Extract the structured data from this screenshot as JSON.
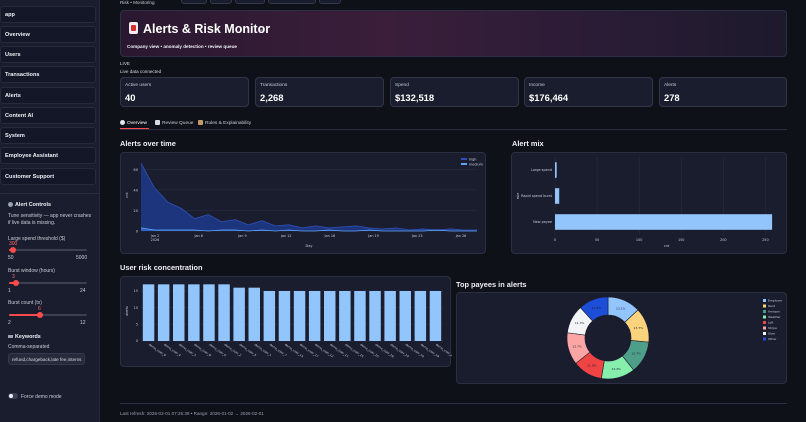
{
  "sidebar": {
    "items": [
      {
        "label": "app"
      },
      {
        "label": "Overview"
      },
      {
        "label": "Users"
      },
      {
        "label": "Transactions"
      },
      {
        "label": "Alerts"
      },
      {
        "label": "Content AI"
      },
      {
        "label": "System"
      },
      {
        "label": "Employee Assistant"
      },
      {
        "label": "Customer Support"
      }
    ],
    "alert_controls": {
      "title": "Alert Controls",
      "help": "Tune sensitivity — app never crashes if live data is missing.",
      "large_spend": {
        "label": "Large spend threshold ($)",
        "value": "300",
        "min": "50",
        "max": "5000",
        "fraction": 0.05
      },
      "burst_window": {
        "label": "Burst window (hours)",
        "value": "3",
        "min": "1",
        "max": "24",
        "fraction": 0.09
      },
      "burst_count": {
        "label": "Burst count (tx)",
        "value": "6",
        "min": "2",
        "max": "12",
        "fraction": 0.4
      }
    },
    "keywords": {
      "title": "Keywords",
      "label": "Comma-separated",
      "value": "refund,chargeback,late fee,interns"
    },
    "force_demo": {
      "label": "Force demo mode",
      "on": false
    }
  },
  "breadcrumb": "Risk • Monitoring",
  "hero": {
    "title": "Alerts & Risk Monitor",
    "link_icon": "link-icon",
    "subtitle": "Company view • anomaly detection • review queue"
  },
  "status": {
    "live": "LIVE",
    "connected": "Live data connected"
  },
  "metrics": [
    {
      "label": "Active users",
      "value": "40"
    },
    {
      "label": "Transactions",
      "value": "2,268"
    },
    {
      "label": "Spend",
      "value": "$132,518"
    },
    {
      "label": "Income",
      "value": "$176,464"
    },
    {
      "label": "Alerts",
      "value": "278"
    }
  ],
  "tabs": [
    {
      "label": "Overview",
      "icon": "overview-icon",
      "active": true
    },
    {
      "label": "Review Queue",
      "icon": "clipboard-icon",
      "active": false
    },
    {
      "label": "Rules & Explainability",
      "icon": "rules-icon",
      "active": false
    }
  ],
  "sections": {
    "alerts_over_time": "Alerts over time",
    "alert_mix": "Alert mix",
    "user_risk": "User risk concentration",
    "top_payees": "Top payees in alerts"
  },
  "chart_data": [
    {
      "type": "area",
      "title": "Alerts over time",
      "xlabel": "Day",
      "ylabel": "cnt",
      "x_ticks": [
        "Jan 2\n2026",
        "Jan 6",
        "Jan 9",
        "Jan 12",
        "Jan 16",
        "Jan 19",
        "Jan 23",
        "Jan 26"
      ],
      "ylim": [
        0,
        70
      ],
      "y_ticks": [
        0,
        20,
        40,
        60
      ],
      "legend": "top-right",
      "series": [
        {
          "name": "high",
          "color": "#1e3a8a",
          "values": [
            66,
            42,
            28,
            22,
            12,
            16,
            9,
            11,
            6,
            10,
            5,
            6,
            3,
            5,
            3,
            4,
            5,
            3,
            2,
            3,
            1,
            2,
            1,
            2,
            1,
            1
          ]
        },
        {
          "name": "medium",
          "color": "#3b82f6",
          "values": [
            3,
            1,
            1,
            1,
            1,
            0,
            1,
            1,
            0,
            1,
            0,
            1,
            0,
            0,
            1,
            0,
            0,
            1,
            0,
            0,
            0,
            0,
            1,
            0,
            0,
            0
          ]
        }
      ]
    },
    {
      "type": "bar",
      "orientation": "horizontal",
      "title": "Alert mix",
      "categories": [
        "Large spend",
        "Rapid spend burst",
        "New payee"
      ],
      "values": [
        2,
        5,
        258
      ],
      "xlabel": "cnt",
      "ylabel": "rule",
      "xlim": [
        0,
        265
      ],
      "x_ticks": [
        0,
        50,
        100,
        150,
        200,
        250
      ],
      "color": "#93c5fd"
    },
    {
      "type": "bar",
      "title": "User risk concentration",
      "categories": [
        "demo_user_9",
        "demo_user_4",
        "demo_user_3",
        "demo_user_8",
        "demo_user_6",
        "demo_user_2",
        "demo_user_5",
        "demo_user_1",
        "demo_user_7",
        "demo_user_13",
        "demo_user_17",
        "demo_user_12",
        "demo_user_11",
        "demo_user_15",
        "demo_user_10",
        "demo_user_18",
        "demo_user_14",
        "demo_user_16",
        "demo_user_19",
        "demo_user_20"
      ],
      "values": [
        17,
        17,
        17,
        17,
        17,
        17,
        16,
        16,
        15,
        15,
        15,
        15,
        15,
        15,
        15,
        15,
        15,
        15,
        15,
        15
      ],
      "ylabel": "alerts",
      "ylim": [
        0,
        18
      ],
      "y_ticks": [
        0,
        5,
        10,
        15
      ],
      "color": "#93c5fd"
    },
    {
      "type": "pie",
      "title": "Top payees in alerts",
      "donut": true,
      "legend": "right",
      "slices": [
        {
          "label": "Employer",
          "value": 13.1,
          "color": "#93c5fd"
        },
        {
          "label": "Rent",
          "value": 13.7,
          "color": "#fcd37d"
        },
        {
          "label": "Amazon",
          "value": 12.7,
          "color": "#4e9f8a"
        },
        {
          "label": "Weather",
          "value": 13.4,
          "color": "#86efac"
        },
        {
          "label": "Lyft",
          "value": 11.9,
          "color": "#ef4444"
        },
        {
          "label": "Stripe",
          "value": 12.7,
          "color": "#fca5a5"
        },
        {
          "label": "Uber",
          "value": 11.3,
          "color": "#f3f4f6"
        },
        {
          "label": "Other",
          "value": 11.8,
          "color": "#1d4ed8"
        }
      ]
    }
  ],
  "footer": "Last refresh: 2026-02-01 07:25:39 • Range: 2026-01-02 → 2026-02-01"
}
